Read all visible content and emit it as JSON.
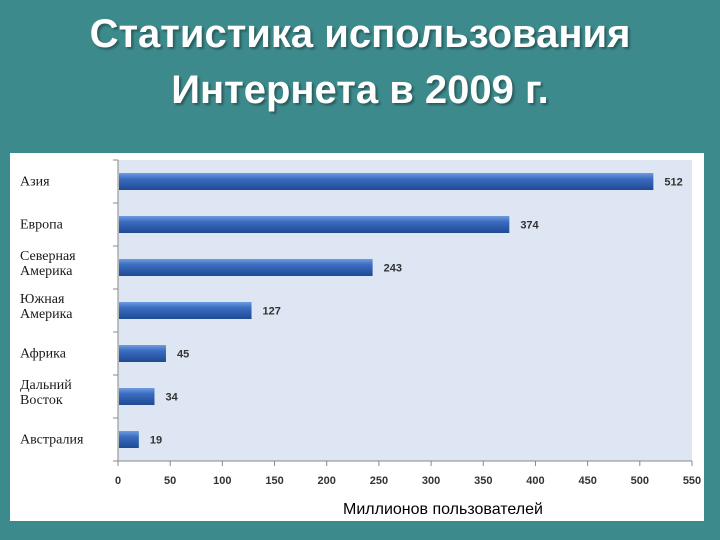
{
  "title": {
    "line1": "Статистика использования",
    "line2": "Интернета в 2009 г."
  },
  "colors": {
    "background": "#3d8a8c",
    "plot_area": "#dde6f2",
    "bar": "#2f5fb0",
    "bar_highlight": "#6f9be0"
  },
  "chart_data": {
    "type": "bar",
    "orientation": "horizontal",
    "categories": [
      [
        "Азия"
      ],
      [
        "Европа"
      ],
      [
        "Северная",
        "Америка"
      ],
      [
        "Южная",
        "Америка"
      ],
      [
        "Африка"
      ],
      [
        "Дальний",
        "Восток"
      ],
      [
        "Австралия"
      ]
    ],
    "values": [
      512,
      374,
      243,
      127,
      45,
      34,
      19
    ],
    "data_labels": [
      "512",
      "374",
      "243",
      "127",
      "45",
      "34",
      "19"
    ],
    "xlim": [
      0,
      550
    ],
    "xticks": [
      0,
      50,
      100,
      150,
      200,
      250,
      300,
      350,
      400,
      450,
      500,
      550
    ],
    "xlabel": "Миллионов пользователей",
    "ylabel": "",
    "grid": false,
    "legend": "none"
  }
}
